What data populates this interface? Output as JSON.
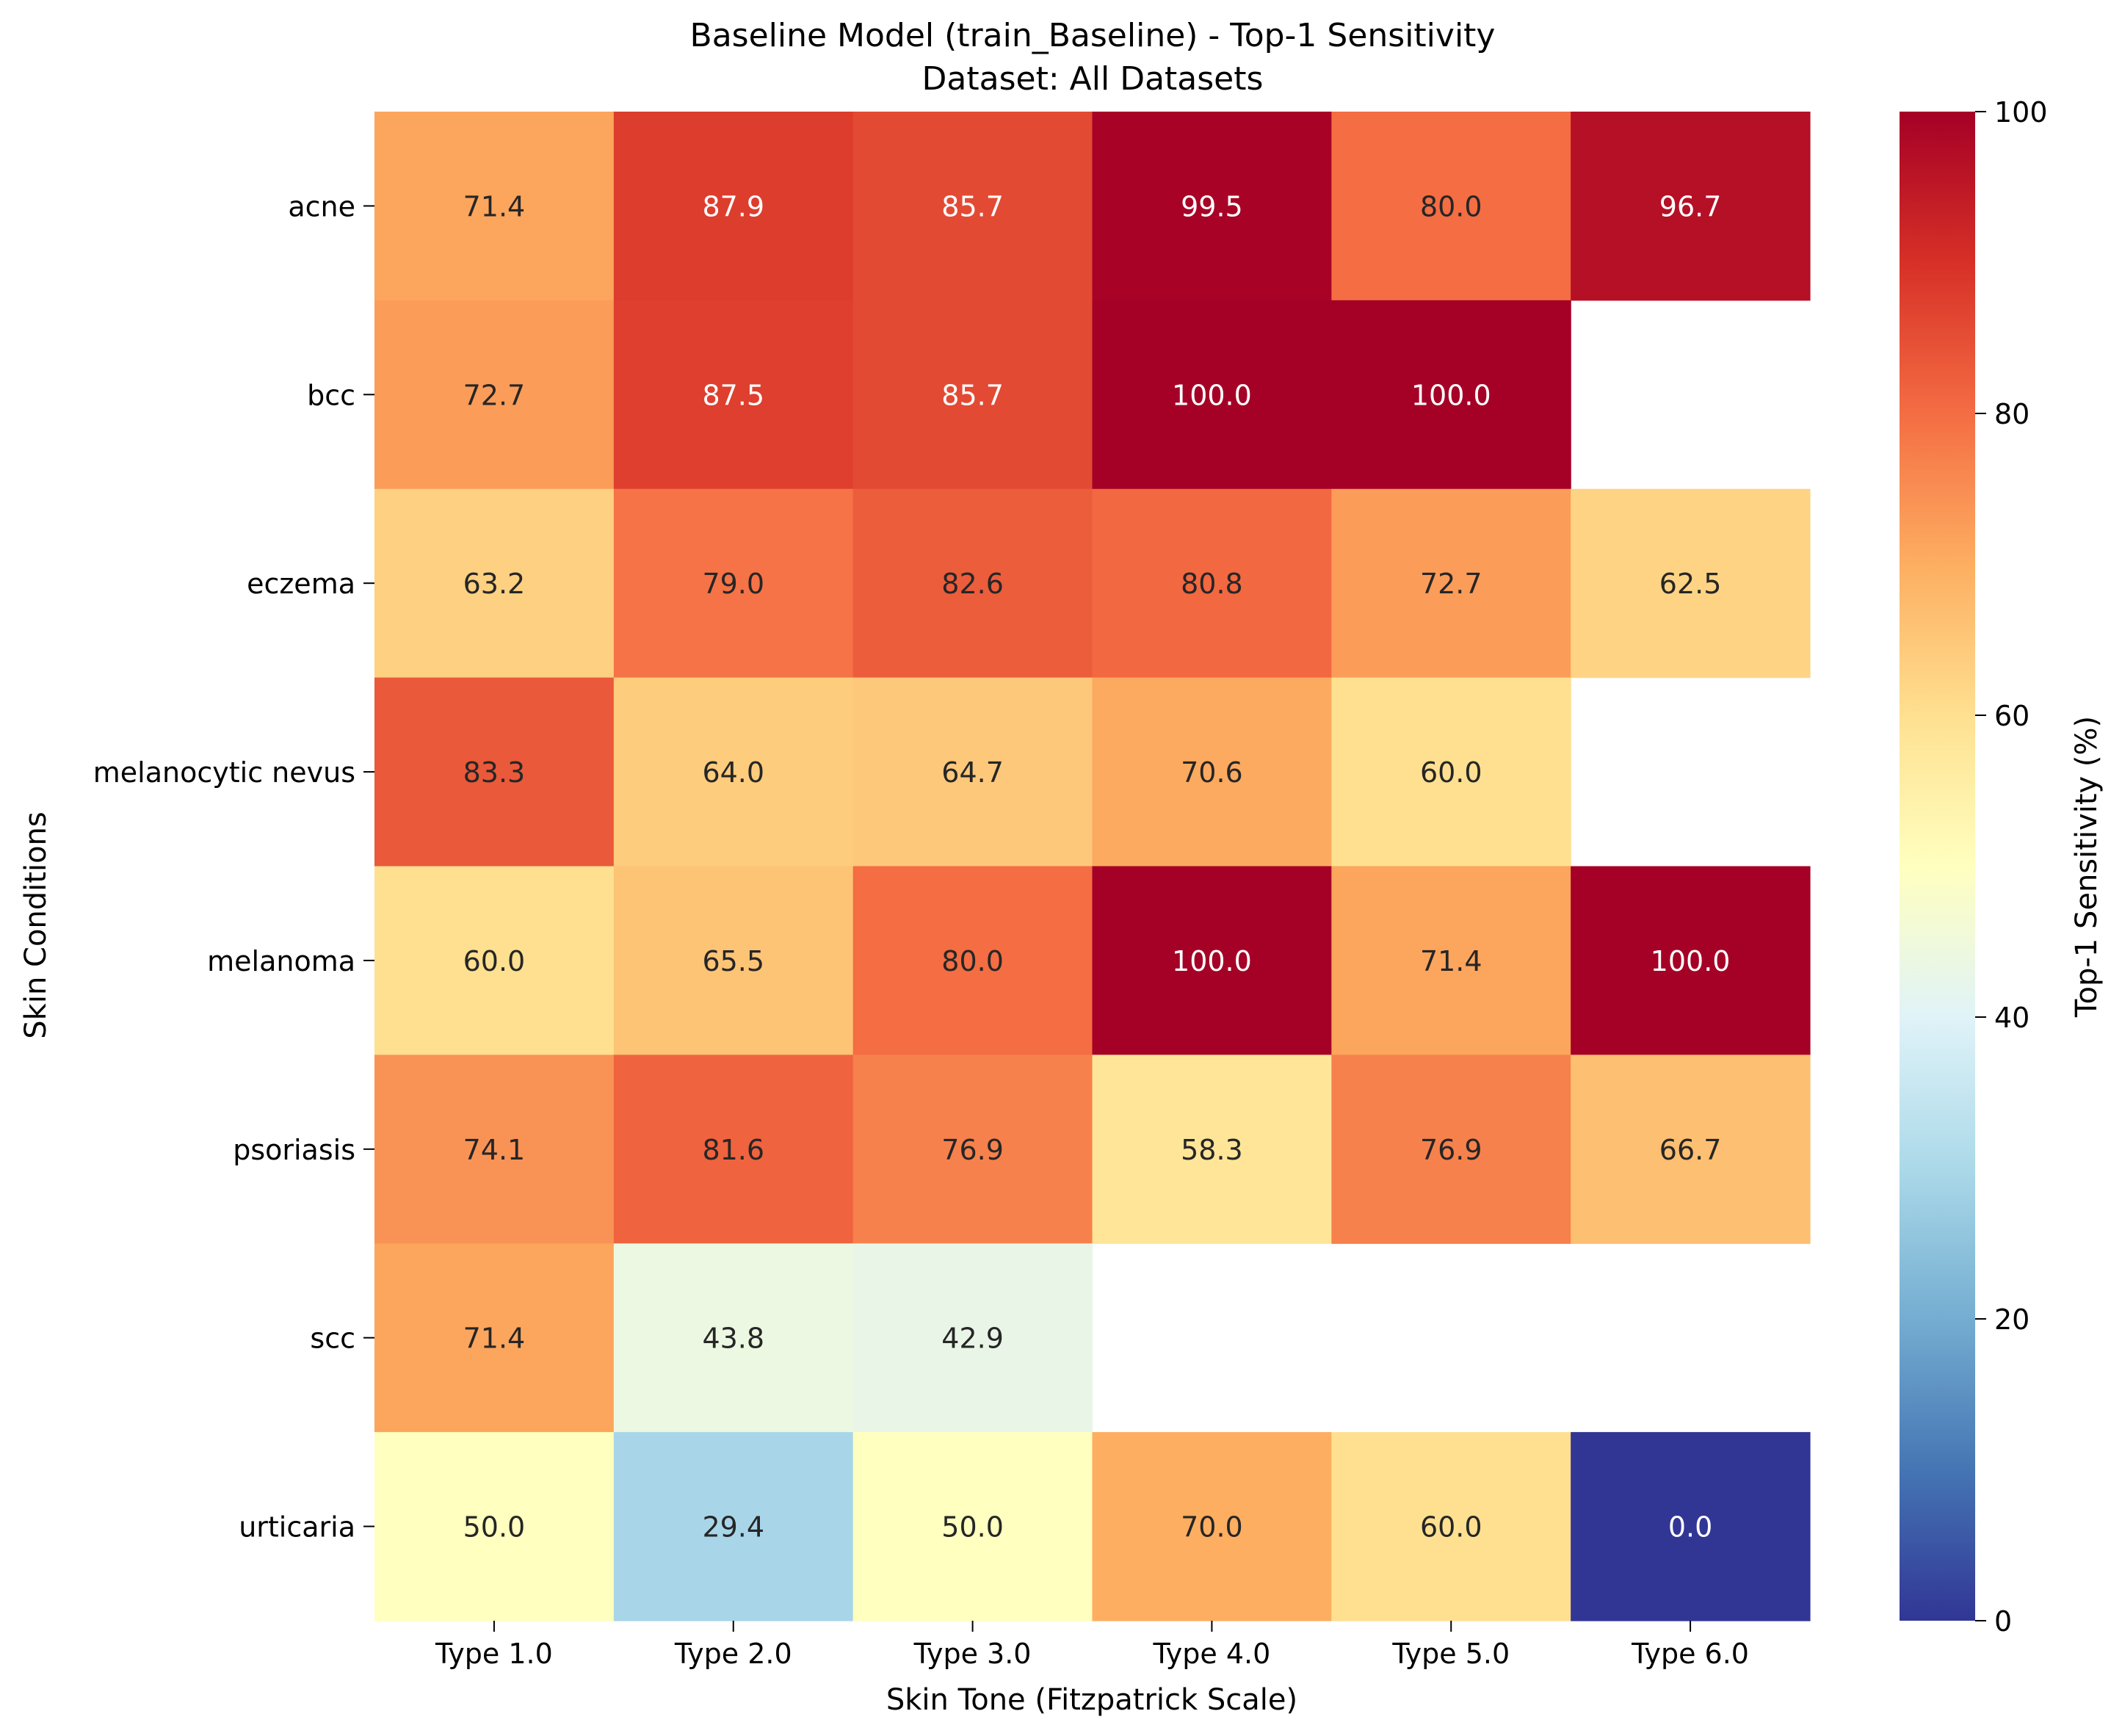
{
  "chart_data": {
    "type": "heatmap",
    "title": "Baseline Model (train_Baseline) - Top-1 Sensitivity",
    "subtitle": "Dataset: All Datasets",
    "xlabel": "Skin Tone (Fitzpatrick Scale)",
    "ylabel": "Skin Conditions",
    "x_categories": [
      "Type 1.0",
      "Type 2.0",
      "Type 3.0",
      "Type 4.0",
      "Type 5.0",
      "Type 6.0"
    ],
    "y_categories": [
      "acne",
      "bcc",
      "eczema",
      "melanocytic nevus",
      "melanoma",
      "psoriasis",
      "scc",
      "urticaria"
    ],
    "values": [
      [
        71.4,
        87.9,
        85.7,
        99.5,
        80.0,
        96.7
      ],
      [
        72.7,
        87.5,
        85.7,
        100.0,
        100.0,
        null
      ],
      [
        63.2,
        79.0,
        82.6,
        80.8,
        72.7,
        62.5
      ],
      [
        83.3,
        64.0,
        64.7,
        70.6,
        60.0,
        null
      ],
      [
        60.0,
        65.5,
        80.0,
        100.0,
        71.4,
        100.0
      ],
      [
        74.1,
        81.6,
        76.9,
        58.3,
        76.9,
        66.7
      ],
      [
        71.4,
        43.8,
        42.9,
        null,
        null,
        null
      ],
      [
        50.0,
        29.4,
        50.0,
        70.0,
        60.0,
        0.0
      ]
    ],
    "value_format": "0.1f",
    "colorbar": {
      "label": "Top-1 Sensitivity (%)",
      "range": [
        0,
        100
      ],
      "ticks": [
        0,
        20,
        40,
        60,
        80,
        100
      ],
      "colormap": "RdYlBu_r"
    }
  }
}
